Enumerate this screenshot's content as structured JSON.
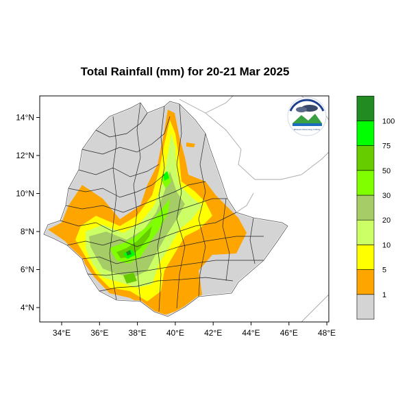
{
  "map": {
    "title": "Total Rainfall (mm) for 20-21 Mar 2025",
    "lat_ticks": [
      "4°N",
      "6°N",
      "8°N",
      "10°N",
      "12°N",
      "14°N"
    ],
    "lon_ticks": [
      "34°E",
      "36°E",
      "38°E",
      "40°E",
      "42°E",
      "44°E",
      "46°E",
      "48°E"
    ],
    "lon_range": [
      33,
      48
    ],
    "lat_range": [
      3.2,
      15
    ],
    "logo_text": "Ethiopian Meteorology Institute"
  },
  "legend": {
    "levels": [
      {
        "label": "1",
        "color": "#d4d4d4"
      },
      {
        "label": "5",
        "color": "#ffa500"
      },
      {
        "label": "10",
        "color": "#ffff00"
      },
      {
        "label": "20",
        "color": "#ccff66"
      },
      {
        "label": "30",
        "color": "#a5cc66"
      },
      {
        "label": "50",
        "color": "#7fff00"
      },
      {
        "label": "75",
        "color": "#66cc00"
      },
      {
        "label": "100",
        "color": "#00ff00"
      },
      {
        "label": "",
        "color": "#228b22"
      }
    ]
  }
}
